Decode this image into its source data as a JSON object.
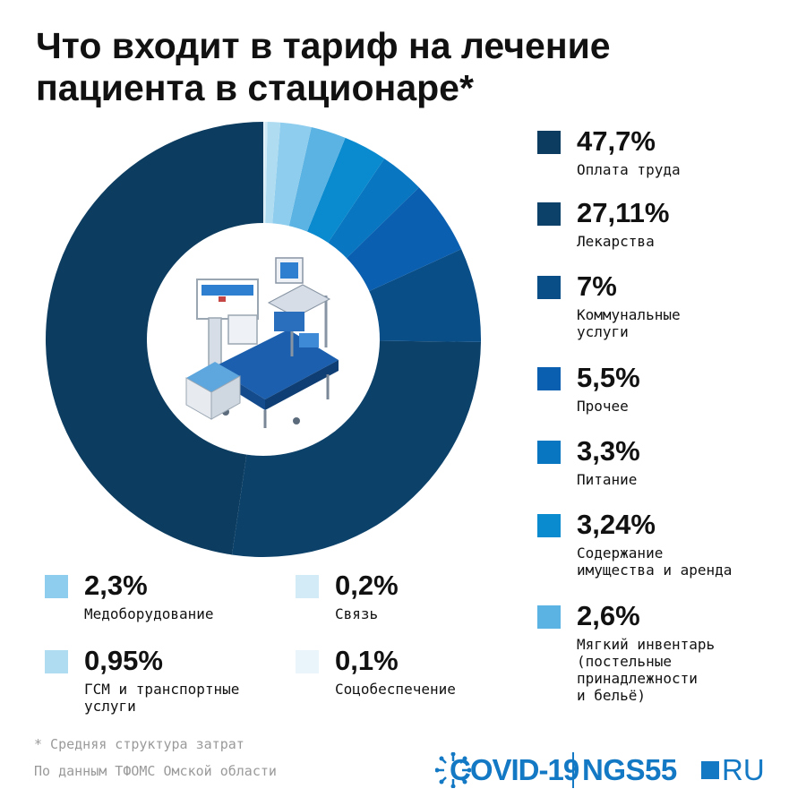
{
  "title": "Что входит в тариф на лечение пациента в стационаре*",
  "chart_data": {
    "type": "pie",
    "style": "donut",
    "slices": [
      {
        "value_text": "47,7%",
        "value": 47.7,
        "label": "Оплата труда",
        "color": "#0c3c5f"
      },
      {
        "value_text": "27,11%",
        "value": 27.11,
        "label": "Лекарства",
        "color": "#0c416a"
      },
      {
        "value_text": "7%",
        "value": 7.0,
        "label": "Коммунальные\nуслуги",
        "color": "#0a4e88"
      },
      {
        "value_text": "5,5%",
        "value": 5.5,
        "label": "Прочее",
        "color": "#0a5fb0"
      },
      {
        "value_text": "3,3%",
        "value": 3.3,
        "label": "Питание",
        "color": "#0876c0"
      },
      {
        "value_text": "3,24%",
        "value": 3.24,
        "label": "Содержание\nимущества и аренда",
        "color": "#0b8bcf"
      },
      {
        "value_text": "2,6%",
        "value": 2.6,
        "label": "Мягкий инвентарь\n(постельные\nпринадлежности\nи бельё)",
        "color": "#5ab3e3"
      },
      {
        "value_text": "2,3%",
        "value": 2.3,
        "label": "Медоборудование",
        "color": "#8fcdee"
      },
      {
        "value_text": "0,95%",
        "value": 0.95,
        "label": "ГСМ и транспортные\nуслуги",
        "color": "#b0dcf1"
      },
      {
        "value_text": "0,2%",
        "value": 0.2,
        "label": "Связь",
        "color": "#d3ebf6"
      },
      {
        "value_text": "0,1%",
        "value": 0.1,
        "label": "Соцобеспечение",
        "color": "#eaf5fb"
      }
    ]
  },
  "footnotes": [
    "* Средняя структура затрат",
    "По данным ТФОМС Омской области"
  ],
  "logo": {
    "covid": "COVID-19",
    "ngs": "NGS55",
    "ru": "RU",
    "color": "#1479c4"
  },
  "icons": {
    "center": "hospital-bed-icon",
    "logo": "virus-icon"
  }
}
